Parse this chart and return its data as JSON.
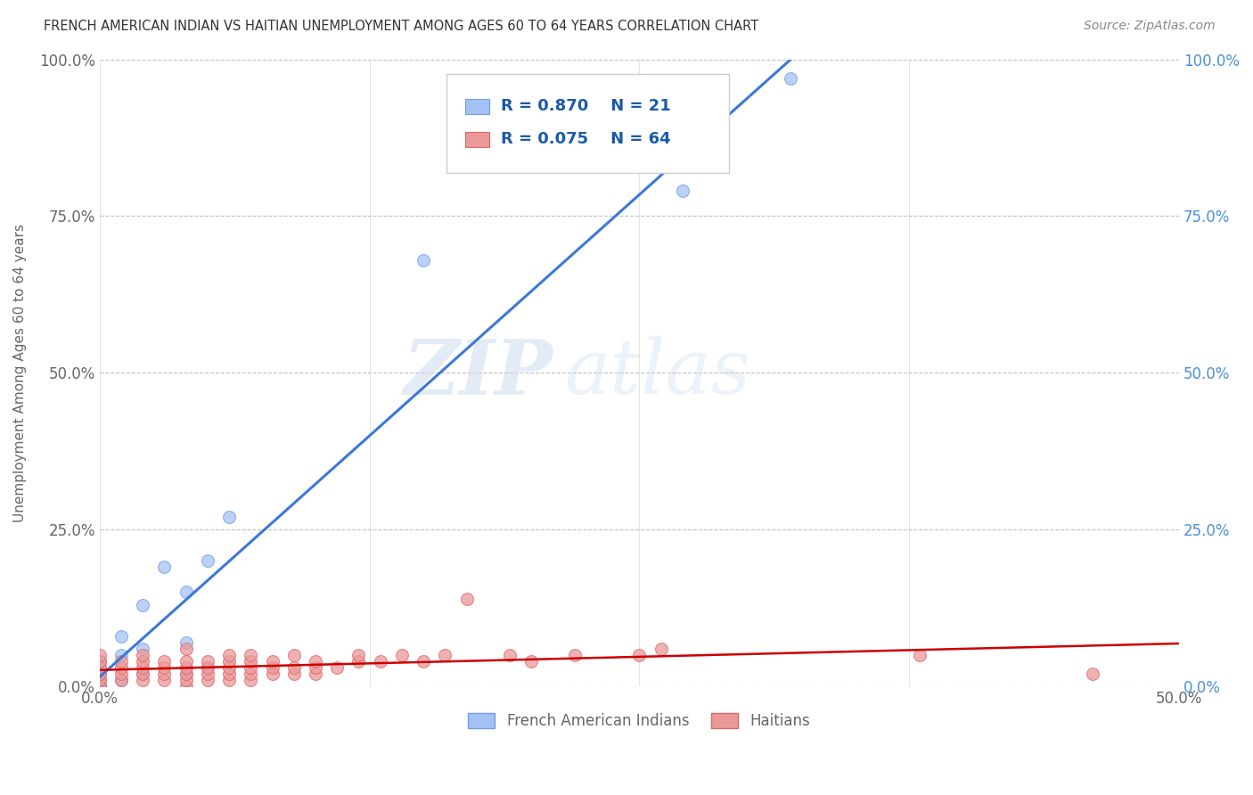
{
  "title": "FRENCH AMERICAN INDIAN VS HAITIAN UNEMPLOYMENT AMONG AGES 60 TO 64 YEARS CORRELATION CHART",
  "source": "Source: ZipAtlas.com",
  "ylabel": "Unemployment Among Ages 60 to 64 years",
  "xlim": [
    0.0,
    0.5
  ],
  "ylim": [
    0.0,
    1.0
  ],
  "xtick_vals": [
    0.0,
    0.125,
    0.25,
    0.375,
    0.5
  ],
  "xtick_labels": [
    "0.0%",
    "",
    "",
    "",
    "50.0%"
  ],
  "ytick_vals": [
    0.0,
    0.25,
    0.5,
    0.75,
    1.0
  ],
  "ytick_labels": [
    "0.0%",
    "25.0%",
    "50.0%",
    "75.0%",
    "100.0%"
  ],
  "series1_color": "#a4c2f4",
  "series1_edge": "#6d9eeb",
  "series2_color": "#ea9999",
  "series2_edge": "#e06666",
  "line1_color": "#3c78d8",
  "line2_color": "#cc0000",
  "legend_label1": "French American Indians",
  "legend_label2": "Haitians",
  "background_color": "#ffffff",
  "grid_color": "#b0b0b0",
  "title_color": "#333333",
  "axis_color": "#666666",
  "right_axis_color": "#4a90d9",
  "french_x": [
    0.0,
    0.0,
    0.0,
    0.0,
    0.0,
    0.01,
    0.01,
    0.01,
    0.02,
    0.02,
    0.02,
    0.03,
    0.04,
    0.04,
    0.04,
    0.05,
    0.05,
    0.06,
    0.15,
    0.27,
    0.32
  ],
  "french_y": [
    0.0,
    0.01,
    0.02,
    0.03,
    0.04,
    0.01,
    0.05,
    0.08,
    0.02,
    0.06,
    0.13,
    0.19,
    0.02,
    0.07,
    0.15,
    0.03,
    0.2,
    0.27,
    0.68,
    0.79,
    0.97
  ],
  "haitian_x": [
    0.0,
    0.0,
    0.0,
    0.0,
    0.0,
    0.0,
    0.0,
    0.01,
    0.01,
    0.01,
    0.01,
    0.02,
    0.02,
    0.02,
    0.02,
    0.02,
    0.03,
    0.03,
    0.03,
    0.03,
    0.04,
    0.04,
    0.04,
    0.04,
    0.04,
    0.04,
    0.05,
    0.05,
    0.05,
    0.05,
    0.06,
    0.06,
    0.06,
    0.06,
    0.06,
    0.07,
    0.07,
    0.07,
    0.07,
    0.07,
    0.08,
    0.08,
    0.08,
    0.09,
    0.09,
    0.09,
    0.1,
    0.1,
    0.1,
    0.11,
    0.12,
    0.12,
    0.13,
    0.14,
    0.15,
    0.16,
    0.17,
    0.19,
    0.2,
    0.22,
    0.25,
    0.26,
    0.38,
    0.46
  ],
  "haitian_y": [
    0.0,
    0.0,
    0.01,
    0.02,
    0.03,
    0.04,
    0.05,
    0.01,
    0.02,
    0.03,
    0.04,
    0.01,
    0.02,
    0.03,
    0.04,
    0.05,
    0.01,
    0.02,
    0.03,
    0.04,
    0.0,
    0.01,
    0.02,
    0.03,
    0.04,
    0.06,
    0.01,
    0.02,
    0.03,
    0.04,
    0.01,
    0.02,
    0.03,
    0.04,
    0.05,
    0.01,
    0.02,
    0.03,
    0.04,
    0.05,
    0.02,
    0.03,
    0.04,
    0.02,
    0.03,
    0.05,
    0.02,
    0.03,
    0.04,
    0.03,
    0.04,
    0.05,
    0.04,
    0.05,
    0.04,
    0.05,
    0.14,
    0.05,
    0.04,
    0.05,
    0.05,
    0.06,
    0.05,
    0.02
  ]
}
